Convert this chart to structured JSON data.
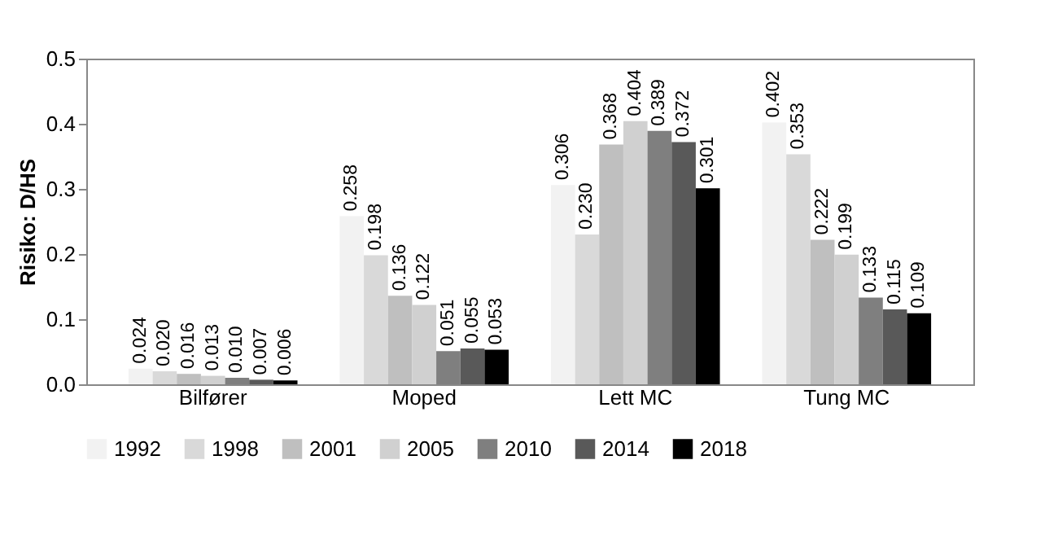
{
  "chart_data": {
    "type": "bar",
    "ylabel": "Risiko: D/HS",
    "categories": [
      "Bilfører",
      "Moped",
      "Lett MC",
      "Tung MC"
    ],
    "series": [
      {
        "name": "1992",
        "color": "#f2f2f2",
        "values": [
          0.024,
          0.258,
          0.306,
          0.402
        ],
        "value_labels": [
          "0.024",
          "0.258",
          "0.306",
          "0.402"
        ]
      },
      {
        "name": "1998",
        "color": "#d9d9d9",
        "values": [
          0.02,
          0.198,
          0.23,
          0.353
        ],
        "value_labels": [
          "0.020",
          "0.198",
          "0.230",
          "0.353"
        ]
      },
      {
        "name": "2001",
        "color": "#bfbfbf",
        "values": [
          0.016,
          0.136,
          0.368,
          0.222
        ],
        "value_labels": [
          "0.016",
          "0.136",
          "0.368",
          "0.222"
        ]
      },
      {
        "name": "2005",
        "color": "#d0d0d0",
        "values": [
          0.013,
          0.122,
          0.404,
          0.199
        ],
        "value_labels": [
          "0.013",
          "0.122",
          "0.404",
          "0.199"
        ]
      },
      {
        "name": "2010",
        "color": "#7f7f7f",
        "values": [
          0.01,
          0.051,
          0.389,
          0.133
        ],
        "value_labels": [
          "0.010",
          "0.051",
          "0.389",
          "0.133"
        ]
      },
      {
        "name": "2014",
        "color": "#595959",
        "values": [
          0.007,
          0.055,
          0.372,
          0.115
        ],
        "value_labels": [
          "0.007",
          "0.055",
          "0.372",
          "0.115"
        ]
      },
      {
        "name": "2018",
        "color": "#000000",
        "values": [
          0.006,
          0.053,
          0.301,
          0.109
        ],
        "value_labels": [
          "0.006",
          "0.053",
          "0.301",
          "0.109"
        ]
      }
    ],
    "ylim": [
      0,
      0.5
    ],
    "yticks": [
      {
        "value": 0,
        "label": "0.0"
      },
      {
        "value": 0.1,
        "label": "0.1"
      },
      {
        "value": 0.2,
        "label": "0.2"
      },
      {
        "value": 0.3,
        "label": "0.3"
      },
      {
        "value": 0.4,
        "label": "0.4"
      },
      {
        "value": 0.5,
        "label": "0.5"
      }
    ],
    "grid": false,
    "legend": "bottom"
  }
}
